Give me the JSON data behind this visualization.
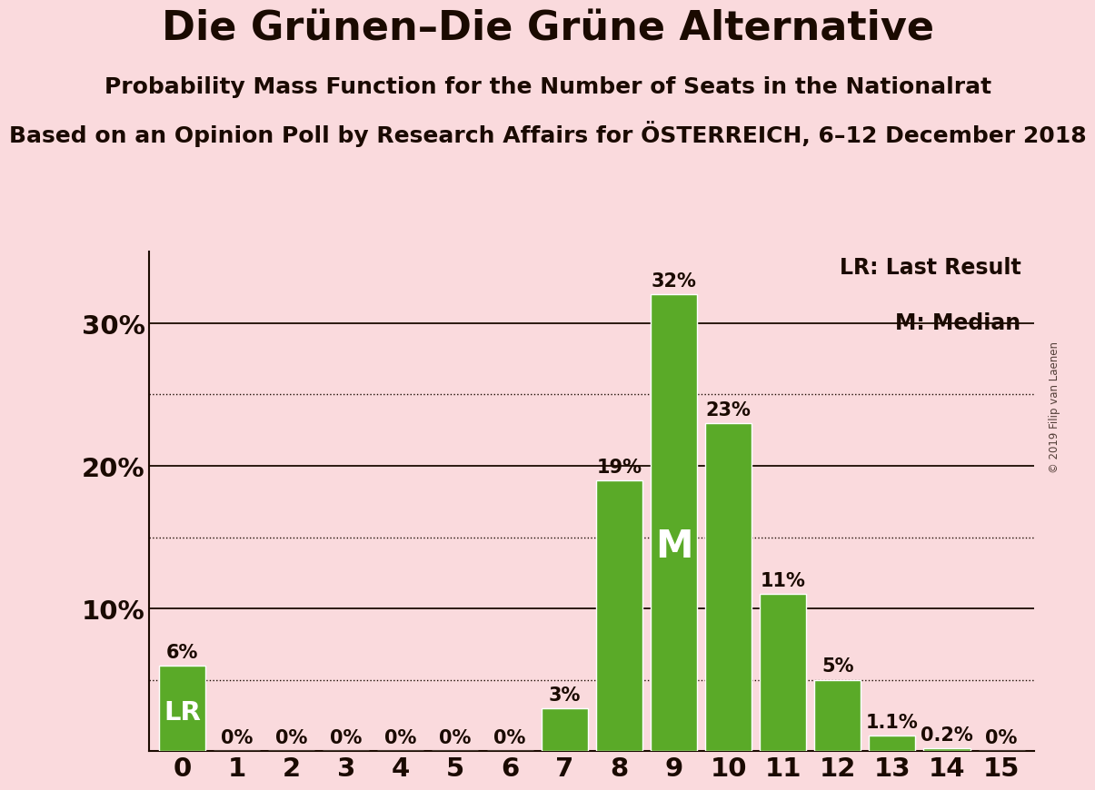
{
  "title": "Die Grünen–Die Grüne Alternative",
  "subtitle1": "Probability Mass Function for the Number of Seats in the Nationalrat",
  "subtitle2": "Based on an Opinion Poll by Research Affairs for ÖSTERREICH, 6–12 December 2018",
  "watermark": "© 2019 Filip van Laenen",
  "categories": [
    0,
    1,
    2,
    3,
    4,
    5,
    6,
    7,
    8,
    9,
    10,
    11,
    12,
    13,
    14,
    15
  ],
  "values": [
    0.06,
    0.0,
    0.0,
    0.0,
    0.0,
    0.0,
    0.0,
    0.03,
    0.19,
    0.32,
    0.23,
    0.11,
    0.05,
    0.011,
    0.002,
    0.0
  ],
  "labels": [
    "6%",
    "0%",
    "0%",
    "0%",
    "0%",
    "0%",
    "0%",
    "3%",
    "19%",
    "32%",
    "23%",
    "11%",
    "5%",
    "1.1%",
    "0.2%",
    "0%"
  ],
  "bar_color": "#5aaa28",
  "background_color": "#fadadd",
  "text_color": "#1a0a00",
  "lr_index": 0,
  "median_index": 9,
  "legend_line1": "LR: Last Result",
  "legend_line2": "M: Median",
  "ylim": [
    0,
    0.35
  ],
  "yticks": [
    0.0,
    0.1,
    0.2,
    0.3
  ],
  "ytick_labels": [
    "",
    "10%",
    "20%",
    "30%"
  ],
  "dotted_gridlines": [
    0.05,
    0.15,
    0.25
  ],
  "solid_gridlines": [
    0.1,
    0.2,
    0.3
  ],
  "title_fontsize": 32,
  "subtitle1_fontsize": 18,
  "subtitle2_fontsize": 18,
  "label_fontsize": 15,
  "axis_fontsize": 21,
  "legend_fontsize": 17,
  "bar_label_outside_color": "#1a0a00",
  "bar_label_inside_color": "#ffffff"
}
